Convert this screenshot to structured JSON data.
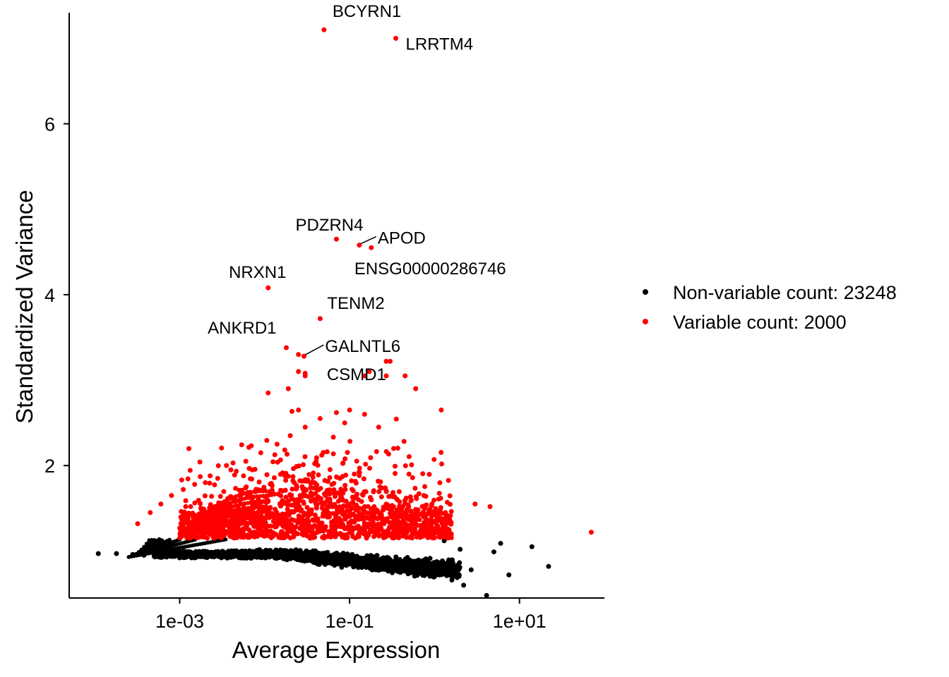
{
  "chart_data": {
    "type": "scatter",
    "xlabel": "Average Expression",
    "ylabel": "Standardized Variance",
    "x_scale": "log10",
    "xlim": [
      5e-05,
      100
    ],
    "ylim": [
      0.45,
      7.3
    ],
    "x_ticks": [
      {
        "value": 0.001,
        "label": "1e-03"
      },
      {
        "value": 0.1,
        "label": "1e-01"
      },
      {
        "value": 10,
        "label": "1e+01"
      }
    ],
    "y_ticks": [
      {
        "value": 2,
        "label": "2"
      },
      {
        "value": 4,
        "label": "4"
      },
      {
        "value": 6,
        "label": "6"
      }
    ],
    "grid": false,
    "legend_position": "right",
    "colors": {
      "non_variable": "#000000",
      "variable": "#ff0000"
    },
    "series": [
      {
        "name": "Non-variable count: 23248",
        "color": "#000000",
        "x": [
          0.00011,
          0.00018,
          0.00028,
          0.00038,
          0.0005,
          0.0007,
          0.001,
          0.0015,
          0.002,
          0.003,
          0.005,
          0.008,
          0.012,
          0.02,
          0.03,
          0.05,
          0.08,
          0.12,
          0.2,
          0.3,
          0.5,
          0.8,
          1.0,
          1.3,
          1.6,
          2.0,
          2.2,
          2.7,
          4.1,
          5.0,
          6.0,
          7.5,
          14.0,
          22.0
        ],
        "y": [
          0.97,
          0.97,
          0.96,
          0.95,
          0.94,
          0.93,
          0.92,
          0.92,
          0.93,
          0.95,
          0.97,
          0.98,
          0.98,
          0.97,
          0.95,
          0.93,
          0.91,
          0.89,
          0.86,
          0.82,
          0.78,
          0.74,
          0.7,
          1.12,
          0.66,
          1.02,
          0.6,
          0.78,
          0.48,
          0.99,
          1.09,
          0.72,
          1.05,
          0.82
        ]
      },
      {
        "name": "Variable count: 2000",
        "color": "#ff0000",
        "x": [
          0.00032,
          0.00045,
          0.0006,
          0.0008,
          0.0011,
          0.0015,
          0.002,
          0.0028,
          0.004,
          0.006,
          0.009,
          0.014,
          0.02,
          0.03,
          0.045,
          0.07,
          0.1,
          0.15,
          0.22,
          0.33,
          0.5,
          0.75,
          1.1,
          1.5,
          3.0,
          4.5,
          70.0,
          0.0015,
          0.0022,
          0.0032,
          0.0048,
          0.007,
          0.011,
          0.016,
          0.024,
          0.036,
          0.054,
          0.08,
          0.12,
          0.18,
          0.27,
          0.4,
          0.6,
          0.9,
          1.25,
          0.6,
          1.2,
          0.011,
          0.019,
          0.025,
          0.025,
          0.03,
          0.15,
          0.27,
          0.3
        ],
        "y": [
          1.32,
          1.45,
          1.55,
          1.65,
          1.72,
          1.78,
          1.8,
          1.85,
          1.95,
          2.05,
          2.15,
          2.25,
          2.35,
          2.45,
          2.55,
          2.62,
          2.65,
          2.6,
          2.45,
          2.2,
          1.9,
          1.65,
          1.45,
          1.35,
          1.55,
          1.52,
          1.22,
          1.25,
          1.3,
          1.35,
          1.4,
          1.45,
          1.5,
          1.55,
          1.6,
          1.65,
          1.7,
          1.7,
          1.65,
          1.6,
          1.55,
          1.5,
          1.4,
          1.3,
          1.2,
          2.9,
          2.65,
          2.85,
          2.9,
          2.65,
          3.1,
          3.05,
          3.05,
          3.05,
          3.22
        ]
      }
    ],
    "labeled_points": [
      {
        "gene": "BCYRN1",
        "x": 0.05,
        "y": 7.1
      },
      {
        "gene": "LRRTM4",
        "x": 0.35,
        "y": 7.0
      },
      {
        "gene": "PDZRN4",
        "x": 0.07,
        "y": 4.65
      },
      {
        "gene": "APOD",
        "x": 0.13,
        "y": 4.58
      },
      {
        "gene": "ENSG00000286746",
        "x": 0.18,
        "y": 4.55
      },
      {
        "gene": "NRXN1",
        "x": 0.011,
        "y": 4.08
      },
      {
        "gene": "TENM2",
        "x": 0.045,
        "y": 3.72
      },
      {
        "gene": "ANKRD1",
        "x": 0.018,
        "y": 3.38
      },
      {
        "gene": "GALNTL6",
        "x": 0.029,
        "y": 3.28
      },
      {
        "gene": "CSMD1",
        "x": 0.17,
        "y": 3.1
      }
    ],
    "extra_points": [
      {
        "x": 0.27,
        "y": 3.22
      },
      {
        "x": 0.45,
        "y": 3.05
      },
      {
        "x": 0.03,
        "y": 3.08
      },
      {
        "x": 0.025,
        "y": 3.3
      }
    ]
  }
}
